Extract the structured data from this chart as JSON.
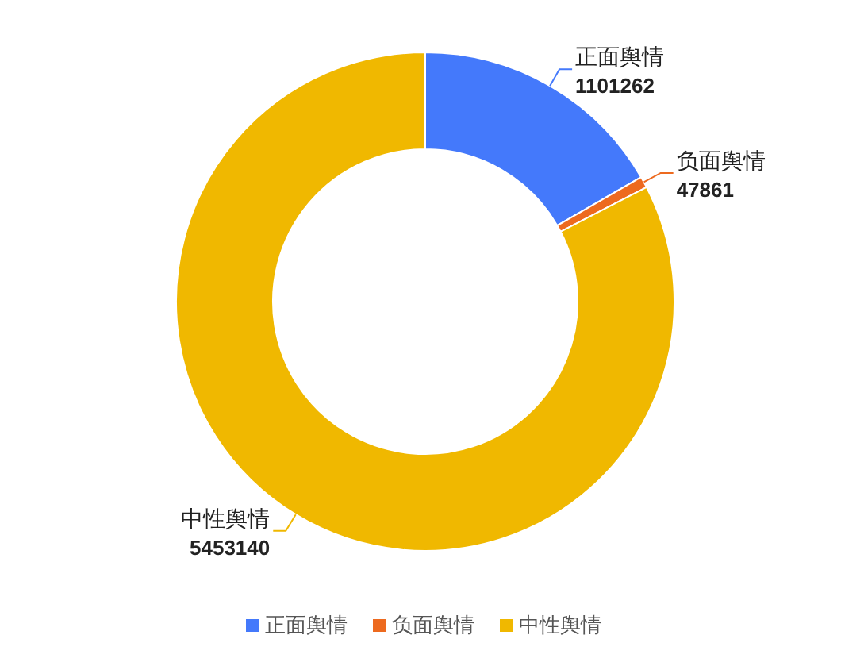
{
  "chart_data": {
    "type": "donut",
    "categories": [
      "正面舆情",
      "负面舆情",
      "中性舆情"
    ],
    "values": [
      1101262,
      47861,
      5453140
    ],
    "colors": [
      "#4479fb",
      "#ed6a1f",
      "#f0b800"
    ],
    "data_labels": true,
    "legend": "bottom"
  }
}
